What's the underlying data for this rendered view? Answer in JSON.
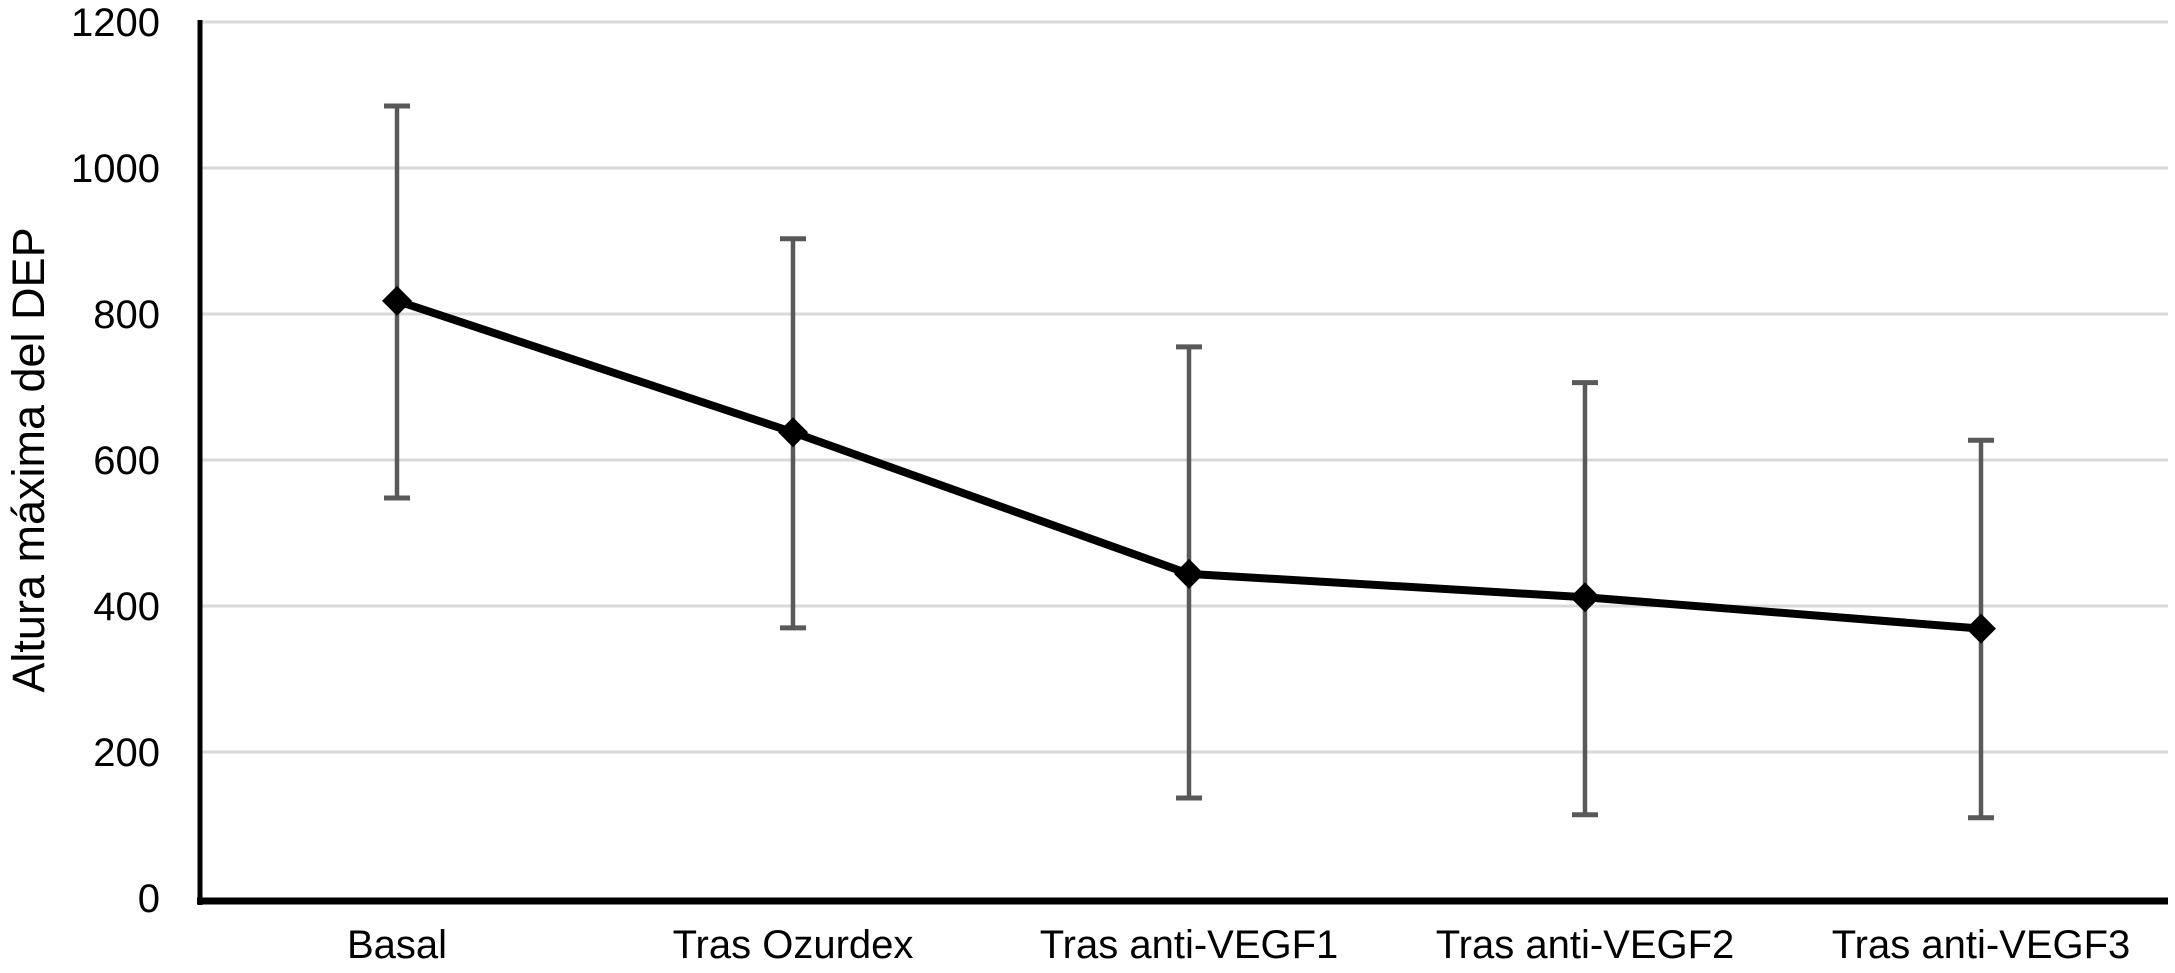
{
  "chart_data": {
    "type": "line",
    "title": "",
    "xlabel": "",
    "ylabel": "Altura máxima del DEP",
    "categories": [
      "Basal",
      "Tras Ozurdex",
      "Tras anti-VEGF1",
      "Tras anti-VEGF2",
      "Tras anti-VEGF3"
    ],
    "series": [
      {
        "values": [
          818,
          638,
          444,
          412,
          369
        ],
        "error_upper": [
          1085,
          903,
          755,
          706,
          627
        ],
        "error_lower": [
          548,
          370,
          137,
          114,
          110
        ]
      }
    ],
    "ylim": [
      0,
      1200
    ],
    "yticks": [
      0,
      200,
      400,
      600,
      800,
      1000,
      1200
    ],
    "grid": "horizontal",
    "legend_position": "none",
    "marker": "diamond",
    "colors": {
      "series_line": "#000000",
      "marker": "#000000",
      "error_bar": "#595959",
      "gridline": "#d9d9d9",
      "axis": "#000000",
      "text": "#000000",
      "background": "#ffffff"
    }
  }
}
